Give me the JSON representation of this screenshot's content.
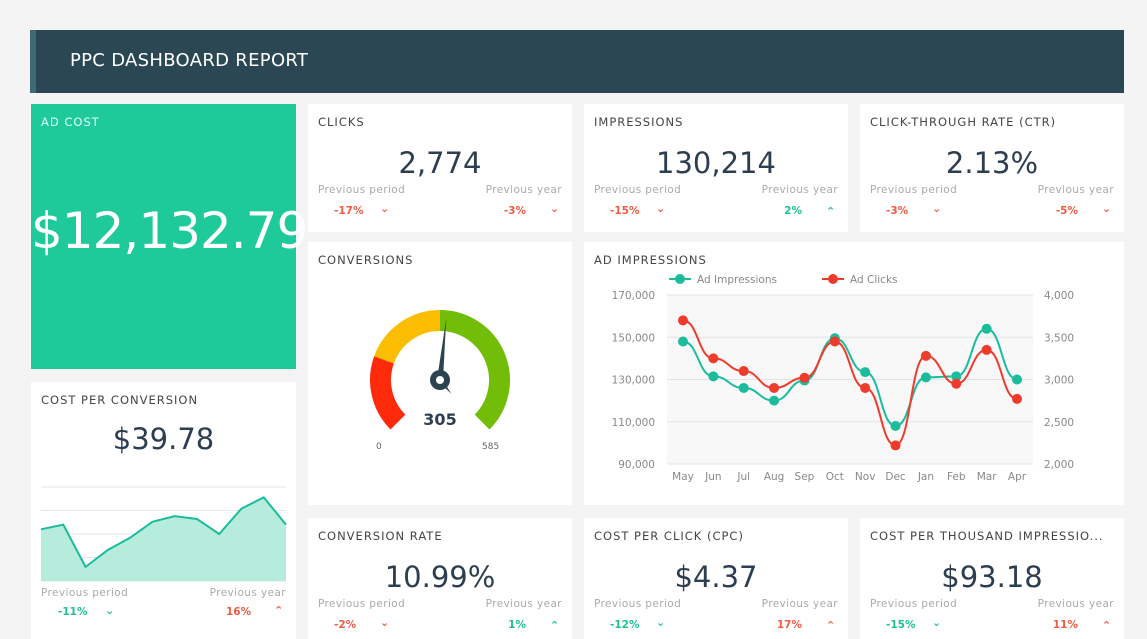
{
  "header": {
    "title": "PPC DASHBOARD REPORT"
  },
  "colors": {
    "header": "#2b4753",
    "accent_green": "#1ec99a",
    "positive": "#1fbf95",
    "negative": "#ef5b43",
    "impressions": "#1abc9c",
    "clicks": "#ef3b2c"
  },
  "ad_cost": {
    "title": "AD COST",
    "value": "$12,132.79"
  },
  "cost_per_conversion": {
    "title": "COST PER CONVERSION",
    "value": "$39.78",
    "prev_period_label": "Previous period",
    "prev_period": "-11%",
    "prev_period_dir": "down",
    "prev_period_color": "#1fbf95",
    "prev_year_label": "Previous year",
    "prev_year": "16%",
    "prev_year_dir": "up",
    "prev_year_color": "#ef5b43",
    "sparkline": [
      0.55,
      0.6,
      0.15,
      0.33,
      0.46,
      0.63,
      0.69,
      0.66,
      0.5,
      0.77,
      0.89,
      0.6
    ]
  },
  "kpis": [
    {
      "title": "CLICKS",
      "value": "2,774",
      "prev_period_label": "Previous period",
      "prev_period": "-17%",
      "prev_period_dir": "down",
      "prev_period_color": "#ef5b43",
      "prev_year_label": "Previous year",
      "prev_year": "-3%",
      "prev_year_dir": "down",
      "prev_year_color": "#ef5b43"
    },
    {
      "title": "IMPRESSIONS",
      "value": "130,214",
      "prev_period_label": "Previous period",
      "prev_period": "-15%",
      "prev_period_dir": "down",
      "prev_period_color": "#ef5b43",
      "prev_year_label": "Previous year",
      "prev_year": "2%",
      "prev_year_dir": "up",
      "prev_year_color": "#1fbf95"
    },
    {
      "title": "CLICK-THROUGH RATE (CTR)",
      "value": "2.13%",
      "prev_period_label": "Previous period",
      "prev_period": "-3%",
      "prev_period_dir": "down",
      "prev_period_color": "#ef5b43",
      "prev_year_label": "Previous year",
      "prev_year": "-5%",
      "prev_year_dir": "down",
      "prev_year_color": "#ef5b43"
    },
    {
      "title": "CONVERSION RATE",
      "value": "10.99%",
      "prev_period_label": "Previous period",
      "prev_period": "-2%",
      "prev_period_dir": "down",
      "prev_period_color": "#ef5b43",
      "prev_year_label": "Previous year",
      "prev_year": "1%",
      "prev_year_dir": "up",
      "prev_year_color": "#1fbf95"
    },
    {
      "title": "COST PER CLICK (CPC)",
      "value": "$4.37",
      "prev_period_label": "Previous period",
      "prev_period": "-12%",
      "prev_period_dir": "down",
      "prev_period_color": "#1fbf95",
      "prev_year_label": "Previous year",
      "prev_year": "17%",
      "prev_year_dir": "up",
      "prev_year_color": "#ef5b43"
    },
    {
      "title": "COST PER THOUSAND IMPRESSIO...",
      "value": "$93.18",
      "prev_period_label": "Previous period",
      "prev_period": "-15%",
      "prev_period_dir": "down",
      "prev_period_color": "#1fbf95",
      "prev_year_label": "Previous year",
      "prev_year": "11%",
      "prev_year_dir": "up",
      "prev_year_color": "#ef5b43"
    }
  ],
  "conversions": {
    "title": "CONVERSIONS",
    "value": "305",
    "min": "0",
    "max": "585",
    "bands": [
      {
        "to": 0.24,
        "color": "#ff2a0a"
      },
      {
        "to": 0.5,
        "color": "#fbbd00"
      },
      {
        "to": 1,
        "color": "#72bd07"
      }
    ]
  },
  "chart_data": {
    "type": "line",
    "title": "AD IMPRESSIONS",
    "categories": [
      "May",
      "Jun",
      "Jul",
      "Aug",
      "Sep",
      "Oct",
      "Nov",
      "Dec",
      "Jan",
      "Feb",
      "Mar",
      "Apr"
    ],
    "y_left": {
      "ticks": [
        "90,000",
        "110,000",
        "130,000",
        "150,000",
        "170,000"
      ],
      "range": [
        90000,
        170000
      ]
    },
    "y_right": {
      "ticks": [
        "2,000",
        "2,500",
        "3,000",
        "3,500",
        "4,000"
      ],
      "range": [
        2000,
        4000
      ]
    },
    "legend_position": "top-left",
    "grid": true,
    "series": [
      {
        "name": "Ad Impressions",
        "axis": "left",
        "color": "#1abc9c",
        "values": [
          148000,
          131500,
          126000,
          120000,
          129500,
          149500,
          133500,
          108000,
          131000,
          131500,
          154000,
          130000
        ]
      },
      {
        "name": "Ad Clicks",
        "axis": "right",
        "color": "#ef3b2c",
        "values": [
          3700,
          3250,
          3100,
          2900,
          3020,
          3450,
          2900,
          2220,
          3280,
          2950,
          3350,
          2770
        ]
      }
    ]
  }
}
